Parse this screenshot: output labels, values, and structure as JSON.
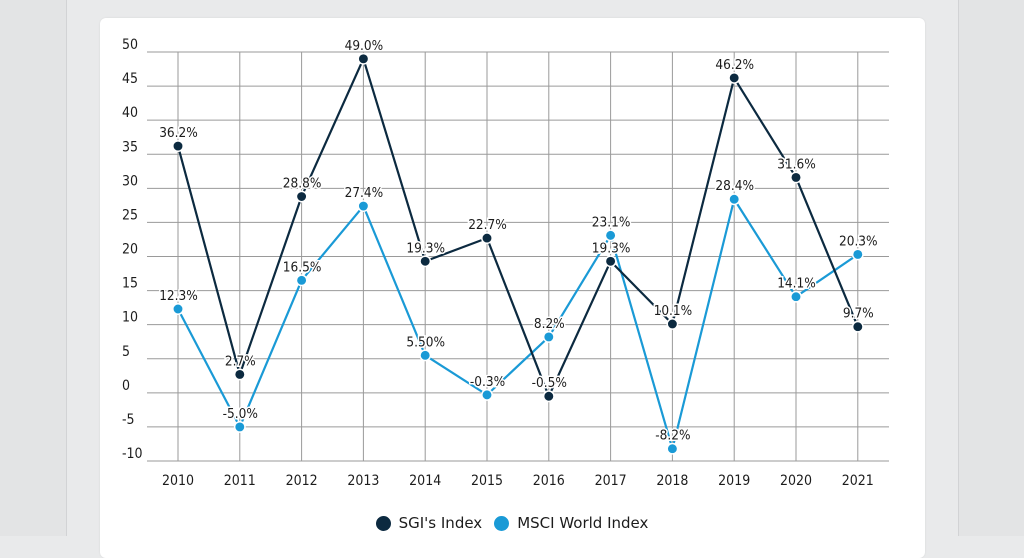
{
  "colors": {
    "sgi": "#0c2a40",
    "msci": "#1a9ad6",
    "grid": "#9a9a9a",
    "text": "#1c1c1c"
  },
  "chart_data": {
    "type": "line",
    "title": "",
    "xlabel": "",
    "ylabel": "",
    "categories": [
      "2010",
      "2011",
      "2012",
      "2013",
      "2014",
      "2015",
      "2016",
      "2017",
      "2018",
      "2019",
      "2020",
      "2021"
    ],
    "ylim": [
      -10,
      50
    ],
    "yticks": [
      "50",
      "45",
      "40",
      "35",
      "30",
      "25",
      "20",
      "15",
      "10",
      "5",
      "0",
      "-5",
      "-10"
    ],
    "grid": true,
    "legend_position": "bottom",
    "series": [
      {
        "name": "SGI's Index",
        "color": "#0c2a40",
        "values": [
          36.2,
          2.7,
          28.8,
          49.0,
          19.3,
          22.7,
          -0.5,
          19.3,
          10.1,
          46.2,
          31.6,
          9.7
        ],
        "labels": [
          "36.2%",
          "2.7%",
          "28.8%",
          "49.0%",
          "19.3%",
          "22.7%",
          "-0.5%",
          "19.3%",
          "10.1%",
          "46.2%",
          "31.6%",
          "9.7%"
        ]
      },
      {
        "name": "MSCI World Index",
        "color": "#1a9ad6",
        "values": [
          12.3,
          -5.0,
          16.5,
          27.4,
          5.5,
          -0.3,
          8.2,
          23.1,
          -8.2,
          28.4,
          14.1,
          20.3
        ],
        "labels": [
          "12.3%",
          "-5.0%",
          "16.5%",
          "27.4%",
          "5.50%",
          "-0.3%",
          "8.2%",
          "23.1%",
          "-8.2%",
          "28.4%",
          "14.1%",
          "20.3%"
        ]
      }
    ]
  }
}
